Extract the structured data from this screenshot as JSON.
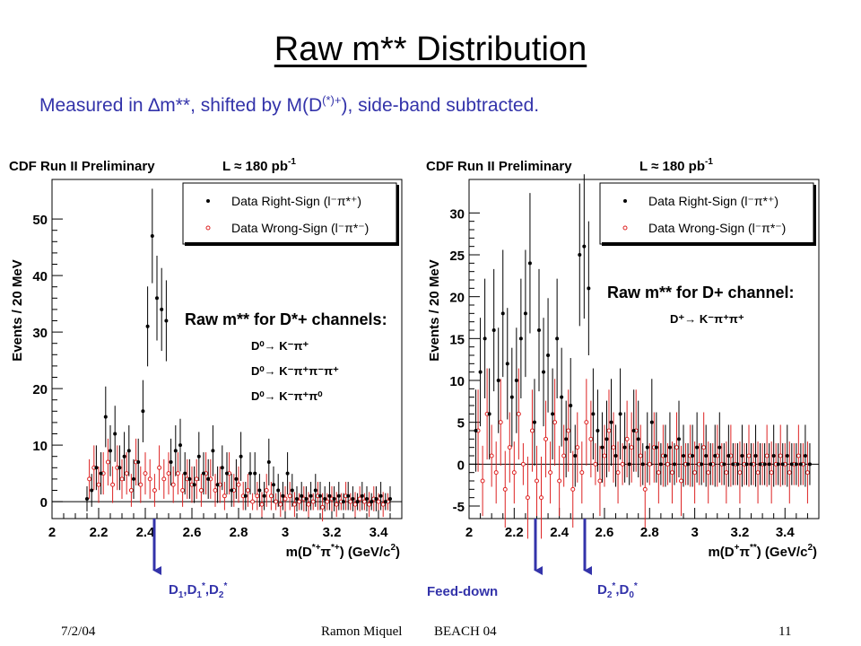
{
  "slide": {
    "title": "Raw m** Distribution",
    "subtitle": {
      "part1": "Measured in ",
      "delta": "∆",
      "part2": "m**, shifted by M(D",
      "sup": "(*)+",
      "part3": "), side-band subtracted."
    },
    "annotations": {
      "left_arrow": {
        "D1": "D",
        "s1": "1",
        "c1": ",D",
        "s2": "1",
        "st2": "*",
        "c2": ",D",
        "s3": "2",
        "st3": "*"
      },
      "feed_down": "Feed-down",
      "right_arrow": {
        "D": "D",
        "s1": "2",
        "st1": "*",
        "c": ",D",
        "s2": "0",
        "st2": "*"
      }
    },
    "footer": {
      "date": "7/2/04",
      "author": "Ramon Miquel",
      "event": "BEACH 04",
      "page": "11"
    },
    "colors": {
      "accent": "#3333aa",
      "rightsign": "#000000",
      "wrongsign": "#dd2222",
      "grid": "#000000"
    }
  },
  "chart_data": [
    {
      "type": "scatter",
      "header": "CDF Run II Preliminary",
      "lumi_label": "L",
      "lumi_value": "≈ 180 pb",
      "lumi_exp": "-1",
      "ylabel": "Events / 20 MeV",
      "xlabel": "m(D",
      "xlabel_sup": "*+",
      "xlabel_mid": "π",
      "xlabel_sup2": "*+",
      "xlabel_end": ") (GeV/c",
      "xlabel_exp": "2",
      "xlabel_close": ")",
      "xlim": [
        2.0,
        3.5
      ],
      "ylim": [
        -3,
        57
      ],
      "xticks": [
        "2",
        "2.2",
        "2.4",
        "2.6",
        "2.8",
        "3",
        "3.2",
        "3.4"
      ],
      "xtick_values": [
        2.0,
        2.2,
        2.4,
        2.6,
        2.8,
        3.0,
        3.2,
        3.4
      ],
      "yticks": [
        "0",
        "10",
        "20",
        "30",
        "40",
        "50"
      ],
      "ytick_values": [
        0,
        10,
        20,
        30,
        40,
        50
      ],
      "legend": [
        "Data Right-Sign (l⁻π*⁺)",
        "Data Wrong-Sign (l⁻π*⁻)"
      ],
      "panel_title": "Raw m** for D*+ channels:",
      "decays": [
        "D⁰→ K⁻π⁺",
        "D⁰→ K⁻π⁺π⁻π⁺",
        "D⁰→ K⁻π⁺π⁰"
      ],
      "series": [
        {
          "name": "Data Right-Sign",
          "x": [
            2.15,
            2.17,
            2.19,
            2.21,
            2.23,
            2.25,
            2.27,
            2.29,
            2.31,
            2.33,
            2.35,
            2.37,
            2.39,
            2.41,
            2.43,
            2.45,
            2.47,
            2.49,
            2.51,
            2.53,
            2.55,
            2.57,
            2.59,
            2.61,
            2.63,
            2.65,
            2.67,
            2.69,
            2.71,
            2.73,
            2.75,
            2.77,
            2.79,
            2.81,
            2.83,
            2.85,
            2.87,
            2.89,
            2.91,
            2.93,
            2.95,
            2.97,
            2.99,
            3.01,
            3.03,
            3.05,
            3.07,
            3.09,
            3.11,
            3.13,
            3.15,
            3.17,
            3.19,
            3.21,
            3.23,
            3.25,
            3.27,
            3.29,
            3.31,
            3.33,
            3.35,
            3.37,
            3.39,
            3.41,
            3.43,
            3.45
          ],
          "y": [
            0.5,
            2,
            6,
            5,
            15,
            9,
            12,
            6,
            8,
            9,
            4,
            7,
            16,
            31,
            47,
            36,
            34,
            32,
            7,
            9,
            10,
            5,
            4,
            3,
            8,
            5,
            4,
            9,
            3,
            6,
            5,
            2,
            4,
            8,
            1,
            5,
            5,
            2,
            1,
            7,
            3,
            2,
            1,
            5,
            2,
            0.5,
            1,
            0.5,
            1,
            2,
            1,
            0.5,
            1,
            0.5,
            1,
            0,
            1,
            0.5,
            0,
            1,
            0.5,
            0,
            0.5,
            1,
            0,
            0.5
          ]
        },
        {
          "name": "Data Wrong-Sign",
          "x": [
            2.16,
            2.18,
            2.2,
            2.22,
            2.24,
            2.26,
            2.28,
            2.3,
            2.32,
            2.34,
            2.36,
            2.38,
            2.4,
            2.42,
            2.44,
            2.46,
            2.48,
            2.5,
            2.52,
            2.54,
            2.56,
            2.58,
            2.6,
            2.62,
            2.64,
            2.66,
            2.68,
            2.7,
            2.72,
            2.74,
            2.76,
            2.78,
            2.8,
            2.82,
            2.84,
            2.86,
            2.88,
            2.9,
            2.92,
            2.94,
            2.96,
            2.98,
            3.0,
            3.02,
            3.04,
            3.06,
            3.08,
            3.1,
            3.12,
            3.14,
            3.16,
            3.18,
            3.2,
            3.22,
            3.24,
            3.26,
            3.28,
            3.3,
            3.32,
            3.34,
            3.36,
            3.38,
            3.4,
            3.42,
            3.44
          ],
          "y": [
            4,
            6,
            3,
            5,
            7,
            3,
            6,
            4,
            5,
            2,
            7,
            3,
            5,
            4,
            2,
            6,
            4,
            5,
            3,
            5,
            2,
            4,
            3,
            4,
            2,
            5,
            4,
            2,
            3,
            1,
            5,
            2,
            3,
            1,
            2,
            0,
            1,
            -0.5,
            2,
            1,
            0,
            -0.5,
            0.5,
            1,
            -0.5,
            0,
            0.5,
            -0.5,
            0,
            1,
            -1,
            0,
            0.5,
            -0.5,
            0,
            1,
            0,
            -0.5,
            0.5,
            0,
            -0.5,
            0.5,
            0,
            -0.5,
            0
          ]
        }
      ]
    },
    {
      "type": "scatter",
      "header": "CDF Run II Preliminary",
      "lumi_label": "L",
      "lumi_value": "≈ 180 pb",
      "lumi_exp": "-1",
      "ylabel": "Events / 20 MeV",
      "xlabel": "m(D",
      "xlabel_sup": "+",
      "xlabel_mid": "π",
      "xlabel_sup2": "**",
      "xlabel_end": ") (GeV/c",
      "xlabel_exp": "2",
      "xlabel_close": ")",
      "xlim": [
        2.0,
        3.55
      ],
      "ylim": [
        -6.5,
        34
      ],
      "xticks": [
        "2",
        "2.2",
        "2.4",
        "2.6",
        "2.8",
        "3",
        "3.2",
        "3.4"
      ],
      "xtick_values": [
        2.0,
        2.2,
        2.4,
        2.6,
        2.8,
        3.0,
        3.2,
        3.4
      ],
      "yticks": [
        "-5",
        "0",
        "5",
        "10",
        "15",
        "20",
        "25",
        "30"
      ],
      "ytick_values": [
        -5,
        0,
        5,
        10,
        15,
        20,
        25,
        30
      ],
      "legend": [
        "Data Right-Sign (l⁻π*⁺)",
        "Data Wrong-Sign (l⁻π*⁻)"
      ],
      "panel_title": "Raw m** for D+ channel:",
      "decays": [
        "D⁺→ K⁻π⁺π⁺"
      ],
      "series": [
        {
          "name": "Data Right-Sign",
          "x": [
            2.03,
            2.05,
            2.07,
            2.09,
            2.11,
            2.13,
            2.15,
            2.17,
            2.19,
            2.21,
            2.23,
            2.25,
            2.27,
            2.29,
            2.31,
            2.33,
            2.35,
            2.37,
            2.39,
            2.41,
            2.43,
            2.45,
            2.47,
            2.49,
            2.51,
            2.53,
            2.55,
            2.57,
            2.59,
            2.61,
            2.63,
            2.65,
            2.67,
            2.69,
            2.71,
            2.73,
            2.75,
            2.77,
            2.79,
            2.81,
            2.83,
            2.85,
            2.87,
            2.89,
            2.91,
            2.93,
            2.95,
            2.97,
            2.99,
            3.01,
            3.03,
            3.05,
            3.07,
            3.09,
            3.11,
            3.13,
            3.15,
            3.17,
            3.19,
            3.21,
            3.23,
            3.25,
            3.27,
            3.29,
            3.31,
            3.33,
            3.35,
            3.37,
            3.39,
            3.41,
            3.43,
            3.45,
            3.47,
            3.49,
            3.51
          ],
          "y": [
            4,
            11,
            15,
            6,
            16,
            10,
            18,
            12,
            8,
            10,
            15,
            18,
            24,
            5,
            16,
            11,
            13,
            6,
            15,
            8,
            3,
            7,
            1,
            25,
            26,
            21,
            6,
            4,
            2,
            3,
            5,
            1,
            6,
            2,
            0,
            4,
            3,
            0,
            2,
            5,
            2,
            0,
            1,
            2,
            0,
            3,
            1,
            0,
            1,
            2,
            0,
            1,
            0,
            1,
            2,
            0,
            1,
            0,
            0,
            1,
            0,
            0,
            1,
            0,
            0,
            0,
            1,
            0,
            0,
            1,
            0,
            0,
            0,
            1,
            0
          ]
        },
        {
          "name": "Data Wrong-Sign",
          "x": [
            2.04,
            2.06,
            2.08,
            2.1,
            2.12,
            2.14,
            2.16,
            2.18,
            2.2,
            2.22,
            2.24,
            2.26,
            2.28,
            2.3,
            2.32,
            2.34,
            2.36,
            2.38,
            2.4,
            2.42,
            2.44,
            2.46,
            2.48,
            2.5,
            2.52,
            2.54,
            2.56,
            2.58,
            2.6,
            2.62,
            2.64,
            2.66,
            2.68,
            2.7,
            2.72,
            2.74,
            2.76,
            2.78,
            2.8,
            2.82,
            2.84,
            2.86,
            2.88,
            2.9,
            2.92,
            2.94,
            2.96,
            2.98,
            3.0,
            3.02,
            3.04,
            3.06,
            3.08,
            3.1,
            3.12,
            3.14,
            3.16,
            3.18,
            3.2,
            3.22,
            3.24,
            3.26,
            3.28,
            3.3,
            3.32,
            3.34,
            3.36,
            3.38,
            3.4,
            3.42,
            3.44,
            3.46,
            3.48,
            3.5
          ],
          "y": [
            4,
            -2,
            6,
            1,
            -1,
            5,
            -3,
            2,
            -1,
            6,
            0,
            -4,
            4,
            -2,
            -4,
            3,
            -1,
            5,
            -2,
            1,
            4,
            -3,
            2,
            -1,
            5,
            3,
            0,
            -2,
            1,
            4,
            2,
            -1,
            0,
            3,
            2,
            4,
            1,
            -3,
            0,
            2,
            -1,
            1,
            0,
            -1,
            2,
            -2,
            0,
            1,
            -1,
            0,
            2,
            -1,
            0,
            1,
            0,
            -1,
            1,
            0,
            -1,
            0,
            1,
            0,
            -1,
            0,
            1,
            -1,
            0,
            1,
            0,
            -1,
            0,
            1,
            0,
            -1
          ]
        }
      ]
    }
  ]
}
